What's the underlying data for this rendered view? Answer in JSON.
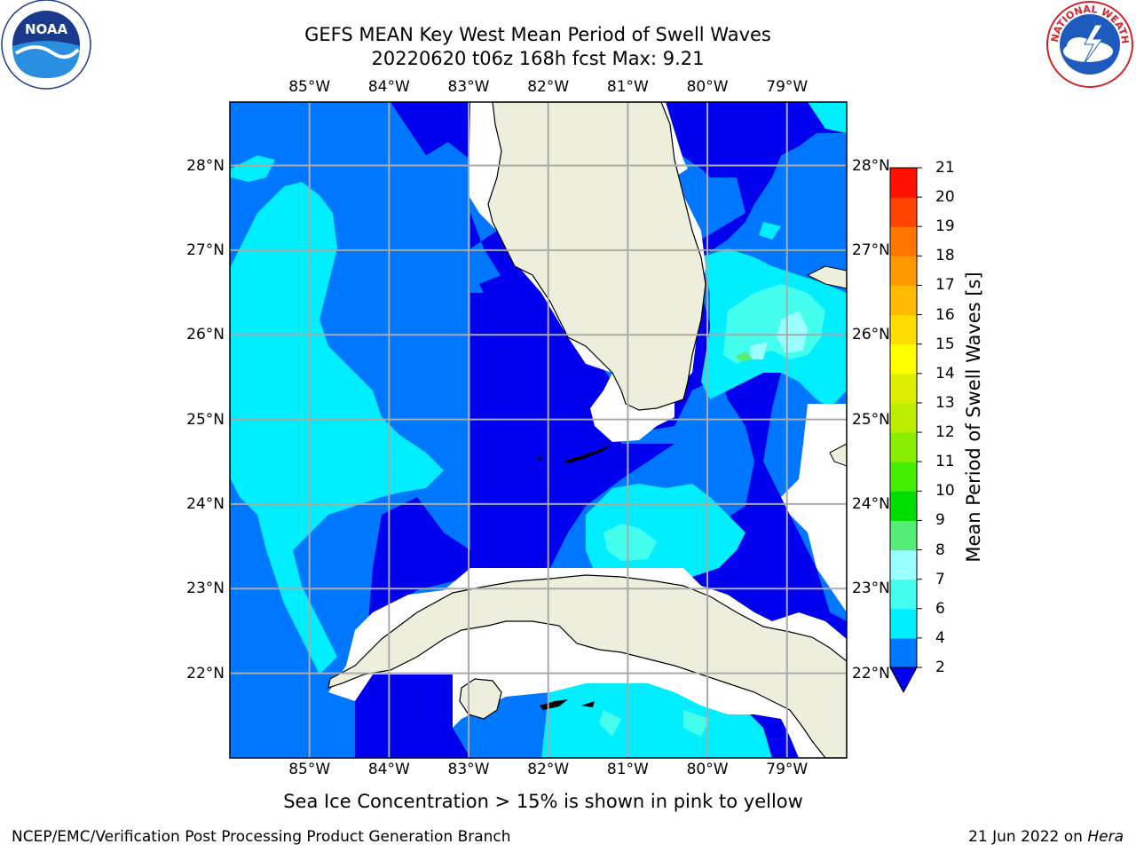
{
  "title": {
    "line1": "GEFS MEAN Key West Mean Period of Swell Waves",
    "line2": "20220620 t06z 168h fcst   Max: 9.21"
  },
  "logos": {
    "left": "noaa-logo",
    "left_text": "NOAA",
    "right": "national-weather-service-logo",
    "right_text": "NATIONAL WEATHER SERVICE"
  },
  "map": {
    "lon_ticks": [
      "85°W",
      "84°W",
      "83°W",
      "82°W",
      "81°W",
      "80°W",
      "79°W"
    ],
    "lat_ticks": [
      "28°N",
      "27°N",
      "26°N",
      "25°N",
      "24°N",
      "23°N",
      "22°N"
    ],
    "lon_range": [
      -86.0,
      -78.25
    ],
    "lat_range": [
      21.0,
      28.75
    ],
    "grid": true,
    "land_color": "#eeeedd",
    "no_data_color": "#ffffff"
  },
  "colorbar": {
    "label": "Mean Period of Swell Waves [s]",
    "levels": [
      2,
      4,
      6,
      7,
      8,
      9,
      10,
      11,
      12,
      13,
      14,
      15,
      16,
      17,
      18,
      19,
      20,
      21
    ],
    "tick_labels": [
      "2",
      "4",
      "6",
      "7",
      "8",
      "9",
      "10",
      "11",
      "12",
      "13",
      "14",
      "15",
      "16",
      "17",
      "18",
      "19",
      "20",
      "21"
    ],
    "colors": [
      "#0077ff",
      "#00eeff",
      "#44ffee",
      "#99ffff",
      "#55ee77",
      "#00dd00",
      "#44ee00",
      "#88ee00",
      "#bbee00",
      "#ddee00",
      "#ffff00",
      "#ffdd00",
      "#ffbb00",
      "#ff9900",
      "#ff7700",
      "#ff4400",
      "#ff1100"
    ],
    "under_color": "#0000ee"
  },
  "note": "Sea Ice Concentration > 15% is shown in pink to yellow",
  "footer": {
    "left": "NCEP/EMC/Verification Post Processing Product Generation Branch",
    "right_date": "21 Jun 2022 on ",
    "right_machine": "Hera"
  }
}
